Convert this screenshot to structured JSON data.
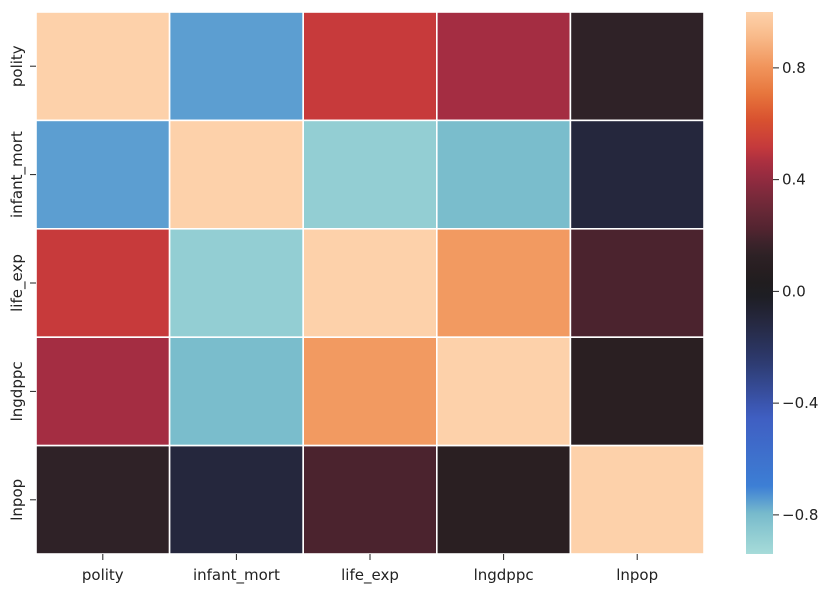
{
  "chart_data": {
    "type": "heatmap",
    "x_categories": [
      "polity",
      "infant_mort",
      "life_exp",
      "lngdppc",
      "lnpop"
    ],
    "y_categories": [
      "polity",
      "infant_mort",
      "life_exp",
      "lngdppc",
      "lnpop"
    ],
    "values": [
      [
        1.0,
        -0.75,
        0.52,
        0.45,
        0.15
      ],
      [
        -0.75,
        1.0,
        -0.88,
        -0.8,
        -0.1
      ],
      [
        0.52,
        -0.88,
        1.0,
        0.82,
        0.2
      ],
      [
        0.45,
        -0.8,
        0.82,
        1.0,
        0.1
      ],
      [
        0.15,
        -0.1,
        0.2,
        0.1,
        1.0
      ]
    ],
    "colorbar": {
      "ticks": [
        0.8,
        0.4,
        0.0,
        -0.4,
        -0.8
      ],
      "tick_labels": [
        "0.8",
        "0.4",
        "0.0",
        "−0.4",
        "−0.8"
      ],
      "range": [
        -0.94,
        1.0
      ]
    },
    "colormap": "icefire",
    "grid_line_color": "#ffffff",
    "title": "",
    "xlabel": "",
    "ylabel": ""
  }
}
